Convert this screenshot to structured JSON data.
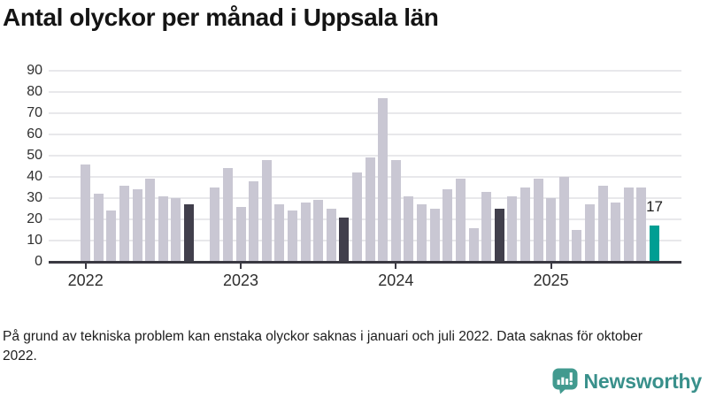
{
  "header": {
    "title": "Antal olyckor per månad i Uppsala län"
  },
  "footnote": {
    "text": "På grund av tekniska problem kan enstaka olyckor saknas i januari och juli 2022. Data saknas för oktober 2022."
  },
  "brand": {
    "name": "Newsworthy",
    "icon": "newsworthy-speech-bubble-bar-chart-icon",
    "text_color": "#39908b",
    "icon_color": "#429a8f"
  },
  "colors": {
    "bar_default": "#c9c7d3",
    "bar_highlight": "#413f4c",
    "bar_accent": "#009e93",
    "gridline": "#e8e8eb",
    "axis": "#3a3942",
    "title": "#141414",
    "tick_text": "#2f2f2f",
    "annotation_text": "#1c1c1c"
  },
  "chart_data": {
    "type": "bar",
    "title": "Antal olyckor per månad i Uppsala län",
    "xlabel": "",
    "ylabel": "",
    "ylim": [
      0,
      90
    ],
    "yticks": [
      0,
      10,
      20,
      30,
      40,
      50,
      60,
      70,
      80,
      90
    ],
    "grid": true,
    "x_unit": "month",
    "start_month": "2022-01",
    "end_month": "2025-09",
    "values": [
      46,
      32,
      24,
      36,
      34,
      39,
      31,
      30,
      27,
      null,
      35,
      44,
      26,
      38,
      48,
      27,
      24,
      28,
      29,
      25,
      21,
      42,
      49,
      77,
      48,
      31,
      27,
      25,
      34,
      39,
      16,
      33,
      25,
      31,
      35,
      39,
      30,
      40,
      15,
      27,
      36,
      28,
      35,
      35,
      17
    ],
    "missing_months": [
      "2022-10"
    ],
    "year_ticks": [
      {
        "label": "2022",
        "index": 0
      },
      {
        "label": "2023",
        "index": 12
      },
      {
        "label": "2024",
        "index": 24
      },
      {
        "label": "2025",
        "index": 36
      }
    ],
    "highlight_indices": [
      8,
      20,
      32
    ],
    "accent_index": 44,
    "annotations": [
      {
        "index": 44,
        "text": "17"
      }
    ]
  }
}
